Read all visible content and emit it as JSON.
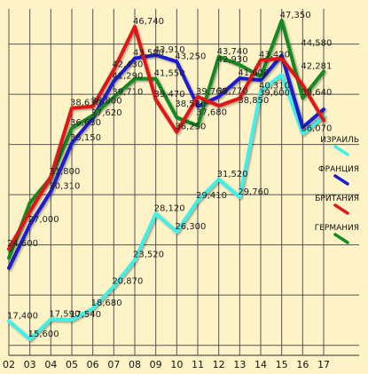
{
  "chart_data": {
    "type": "line",
    "title": "",
    "xlabel": "",
    "ylabel": "",
    "x": [
      "02",
      "03",
      "04",
      "05",
      "06",
      "07",
      "08",
      "09",
      "10",
      "11",
      "12",
      "13",
      "14",
      "15",
      "16",
      "17"
    ],
    "ylim": [
      14000,
      48500
    ],
    "grid": true,
    "legend_placement": "right",
    "background_color": "#fdf3c7",
    "grid_color": "#555555",
    "series": [
      {
        "name": "ИЗРАИЛЬ",
        "color": "#40f0e8",
        "values": [
          17400,
          15600,
          17590,
          17540,
          18680,
          20870,
          23520,
          28120,
          26300,
          29410,
          31520,
          29760,
          40310,
          41950,
          36070,
          37800
        ]
      },
      {
        "name": "ФРАНЦИЯ",
        "color": "#1a1ad0",
        "values": [
          22700,
          27000,
          30310,
          35150,
          37620,
          41290,
          43580,
          43910,
          43250,
          38800,
          39770,
          41600,
          41416,
          43870,
          36700,
          38500
        ]
      },
      {
        "name": "БРИТАНИЯ",
        "color": "#e01818",
        "values": [
          24600,
          28300,
          31800,
          38630,
          38800,
          42430,
          46740,
          39470,
          36250,
          39760,
          38850,
          39600,
          43420,
          43550,
          40910,
          37400
        ]
      },
      {
        "name": "ГЕРМАНИЯ",
        "color": "#128a20",
        "values": [
          23700,
          29200,
          31700,
          36630,
          37900,
          39710,
          41550,
          41550,
          37680,
          36880,
          43740,
          42930,
          41750,
          47350,
          39640,
          42281
        ]
      }
    ],
    "labels": [
      {
        "text": "17,400",
        "x": "02",
        "y": 17400
      },
      {
        "text": "15,600",
        "x": "03",
        "y": 15600
      },
      {
        "text": "17,590",
        "x": "04",
        "y": 17590
      },
      {
        "text": "17,540",
        "x": "05",
        "y": 17540
      },
      {
        "text": "18,680",
        "x": "06",
        "y": 18680
      },
      {
        "text": "20,870",
        "x": "07",
        "y": 20870
      },
      {
        "text": "23,520",
        "x": "08",
        "y": 23520
      },
      {
        "text": "28,120",
        "x": "09",
        "y": 28120
      },
      {
        "text": "26,300",
        "x": "10",
        "y": 26300
      },
      {
        "text": "29,410",
        "x": "11",
        "y": 29410
      },
      {
        "text": "31,520",
        "x": "12",
        "y": 31520
      },
      {
        "text": "29,760",
        "x": "13",
        "y": 29760
      },
      {
        "text": "40,310",
        "x": "14",
        "y": 40310
      },
      {
        "text": "36,070",
        "x": "16",
        "y": 36070
      },
      {
        "text": "24,600",
        "x": "02",
        "y": 24600
      },
      {
        "text": "27,000",
        "x": "03",
        "y": 27000
      },
      {
        "text": "30,310",
        "x": "04",
        "y": 30310
      },
      {
        "text": "31,800",
        "x": "04",
        "y": 31800
      },
      {
        "text": "35,150",
        "x": "05",
        "y": 35150
      },
      {
        "text": "36,630",
        "x": "05",
        "y": 36630
      },
      {
        "text": "38,630",
        "x": "05",
        "y": 38630
      },
      {
        "text": "37,620",
        "x": "06",
        "y": 37620
      },
      {
        "text": "38,800",
        "x": "06",
        "y": 38800
      },
      {
        "text": "41,290",
        "x": "07",
        "y": 41290
      },
      {
        "text": "42,430",
        "x": "07",
        "y": 42430
      },
      {
        "text": "39,710",
        "x": "07",
        "y": 39710
      },
      {
        "text": "46,740",
        "x": "08",
        "y": 46740
      },
      {
        "text": "43,580",
        "x": "08",
        "y": 43580
      },
      {
        "text": "43,910",
        "x": "09",
        "y": 43910
      },
      {
        "text": "41,550",
        "x": "09",
        "y": 41550
      },
      {
        "text": "39,470",
        "x": "09",
        "y": 39470
      },
      {
        "text": "43,250",
        "x": "10",
        "y": 43250
      },
      {
        "text": "36,250",
        "x": "10",
        "y": 36250
      },
      {
        "text": "38,520",
        "x": "10",
        "y": 38520
      },
      {
        "text": "37,680",
        "x": "11",
        "y": 37680
      },
      {
        "text": "39,760",
        "x": "11",
        "y": 39760
      },
      {
        "text": "43,740",
        "x": "12",
        "y": 43740
      },
      {
        "text": "42,930",
        "x": "12",
        "y": 42930
      },
      {
        "text": "39,770",
        "x": "12",
        "y": 39770
      },
      {
        "text": "38,850",
        "x": "13",
        "y": 38850
      },
      {
        "text": "41,600",
        "x": "13",
        "y": 41600
      },
      {
        "text": "39,600",
        "x": "14",
        "y": 39600
      },
      {
        "text": "43,420",
        "x": "14",
        "y": 43420
      },
      {
        "text": "47,350",
        "x": "15",
        "y": 47350
      },
      {
        "text": "44,580",
        "x": "16",
        "y": 44580
      },
      {
        "text": "42,281",
        "x": "16",
        "y": 42281
      },
      {
        "text": "39,640",
        "x": "16",
        "y": 39640
      }
    ]
  }
}
